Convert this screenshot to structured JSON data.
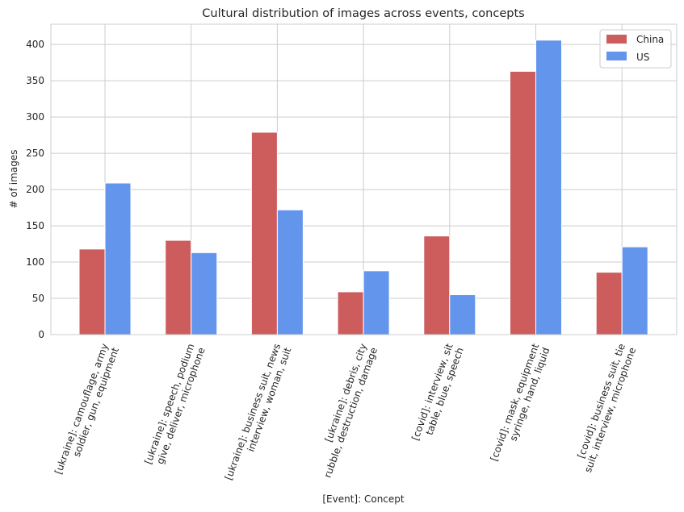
{
  "chart_data": {
    "type": "bar",
    "title": "Cultural distribution of images across events, concepts",
    "xlabel": "[Event]: Concept",
    "ylabel": "# of images",
    "ylim": [
      0,
      428
    ],
    "yticks": [
      0,
      50,
      100,
      150,
      200,
      250,
      300,
      350,
      400
    ],
    "grid": true,
    "legend_position": "top-right",
    "categories": [
      [
        "[ukraine]: camouflage, army",
        "soldier, gun, equipment"
      ],
      [
        "[ukraine]: speech, podium",
        "give, deliver, microphone"
      ],
      [
        "[ukraine]: business suit, news",
        "interview, woman, suit"
      ],
      [
        "[ukraine]: debris, city",
        "rubble, destruction, damage"
      ],
      [
        "[covid]: interview, sit",
        "table, blue, speech"
      ],
      [
        "[covid]: mask, equipment",
        "syringe, hand, liquid"
      ],
      [
        "[covid]: business suit, tie",
        "suit, interview, microphone"
      ]
    ],
    "series": [
      {
        "name": "China",
        "color": "#cd5c5c",
        "values": [
          118,
          130,
          279,
          59,
          136,
          363,
          86
        ]
      },
      {
        "name": "US",
        "color": "#6495ed",
        "values": [
          209,
          113,
          172,
          88,
          55,
          406,
          121
        ]
      }
    ]
  }
}
